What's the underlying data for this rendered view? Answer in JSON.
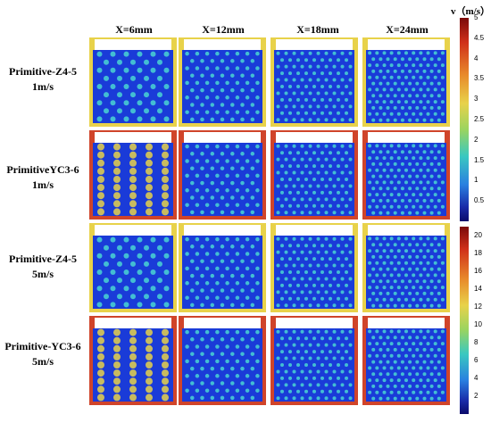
{
  "unit_label": "v（m/s）",
  "column_headers": [
    "X=6mm",
    "X=12mm",
    "X=18mm",
    "X=24mm"
  ],
  "row_labels": [
    [
      "Primitive-Z4-5",
      "1m/s"
    ],
    [
      "PrimitiveYC3-6",
      "1m/s"
    ],
    [
      "Primitive-Z4-5",
      "5m/s"
    ],
    [
      "Primitive-YC3-6",
      "5m/s"
    ]
  ],
  "colorbar_top": {
    "ticks": [
      "5",
      "4.5",
      "4",
      "3.5",
      "3",
      "2.5",
      "2",
      "1.5",
      "1",
      "0.5"
    ],
    "range": [
      0,
      5
    ]
  },
  "colorbar_bottom": {
    "ticks": [
      "20",
      "18",
      "16",
      "14",
      "12",
      "10",
      "8",
      "6",
      "4",
      "2"
    ],
    "range": [
      0,
      21
    ]
  },
  "colors": {
    "background": "#1a3bd8",
    "hole": "#4ad6d2",
    "edge_warm": "#e8d24a",
    "edge_hot": "#d0442a"
  }
}
